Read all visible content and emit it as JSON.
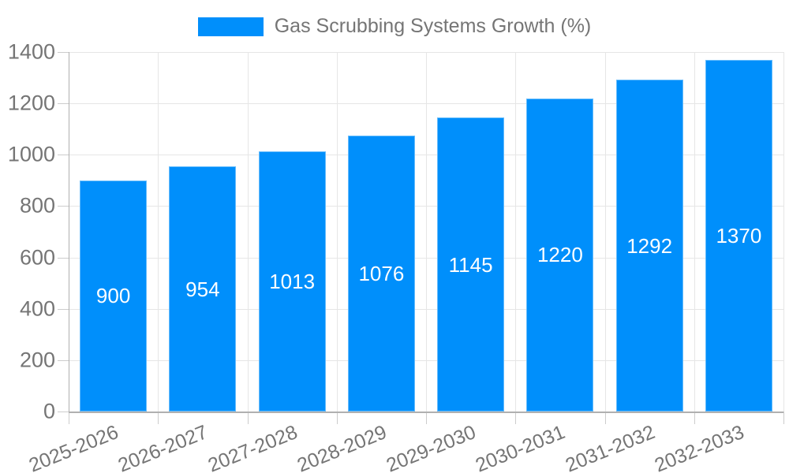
{
  "chart_data": {
    "type": "bar",
    "title": "Gas Scrubbing Systems Growth (%)",
    "categories": [
      "2025-2026",
      "2026-2027",
      "2027-2028",
      "2028-2029",
      "2029-2030",
      "2030-2031",
      "2031-2032",
      "2032-2033"
    ],
    "values": [
      900,
      954,
      1013,
      1076,
      1145,
      1220,
      1292,
      1370
    ],
    "xlabel": "",
    "ylabel": "",
    "ylim": [
      0,
      1400
    ],
    "ytick_step": 200,
    "yticks": [
      0,
      200,
      400,
      600,
      800,
      1000,
      1200,
      1400
    ],
    "grid": "both",
    "legend_position": "top-center",
    "bar_value_labels_visible": true,
    "colors": {
      "bar": "#008FFB",
      "bar_value_label": "#FFFFFF",
      "axis_text": "#757575",
      "gridline": "#E6E6E6",
      "axis_line": "#B0B0B0",
      "tick": "#CCCCCC",
      "background": "#FFFFFF"
    }
  },
  "legend": {
    "label": "Gas Scrubbing Systems Growth (%)"
  }
}
